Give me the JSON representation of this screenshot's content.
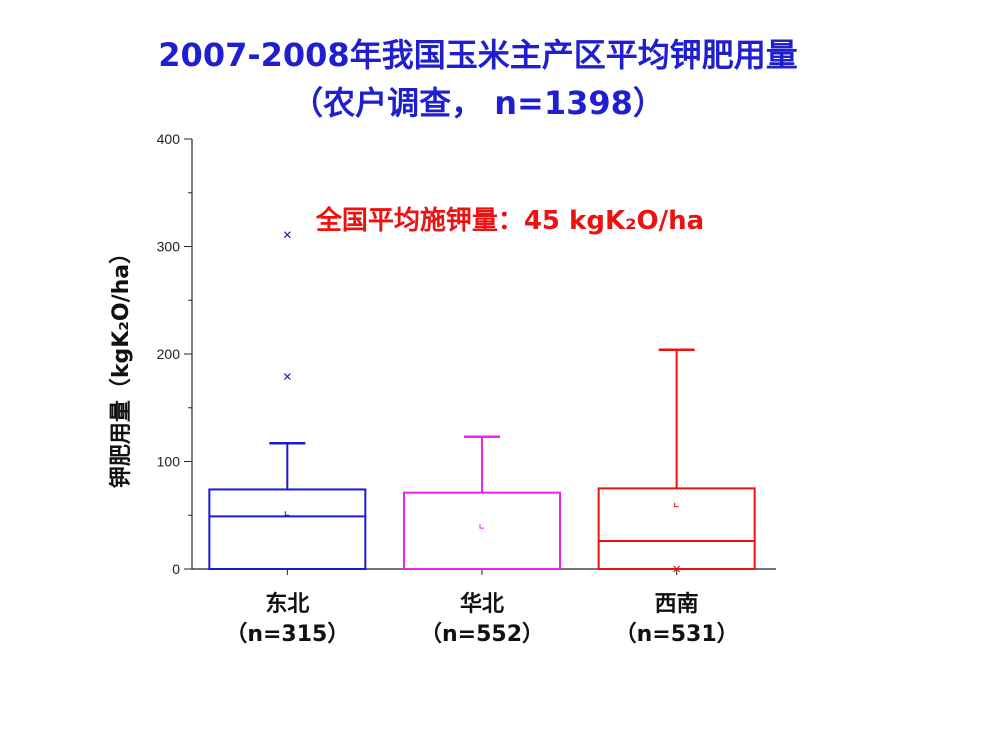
{
  "title_line1": "2007-2008年我国玉米主产区平均钾肥用量",
  "title_line2": "（农户调查， n=1398）",
  "chart_data": {
    "type": "box",
    "ylabel": "钾肥用量（kgK₂O/ha）",
    "ylim": [
      0,
      400
    ],
    "yticks": [
      0,
      100,
      200,
      300,
      400
    ],
    "annotation": "全国平均施钾量：45 kgK₂O/ha",
    "categories": [
      {
        "name": "东北",
        "n_label": "（n=315）",
        "color": "#1a1ad6",
        "min": 0,
        "q1": 0,
        "median": 49,
        "q3": 74,
        "whisker_high": 117,
        "mean": 50,
        "outliers": [
          179,
          311
        ]
      },
      {
        "name": "华北",
        "n_label": "（n=552）",
        "color": "#ee22ee",
        "min": 0,
        "q1": 0,
        "median": 0,
        "q3": 71,
        "whisker_high": 123,
        "mean": 38,
        "outliers": []
      },
      {
        "name": "西南",
        "n_label": "（n=531）",
        "color": "#ee1111",
        "min": 0,
        "q1": 0,
        "median": 26,
        "q3": 75,
        "whisker_high": 204,
        "mean": 58,
        "outliers": [
          0
        ]
      }
    ]
  }
}
